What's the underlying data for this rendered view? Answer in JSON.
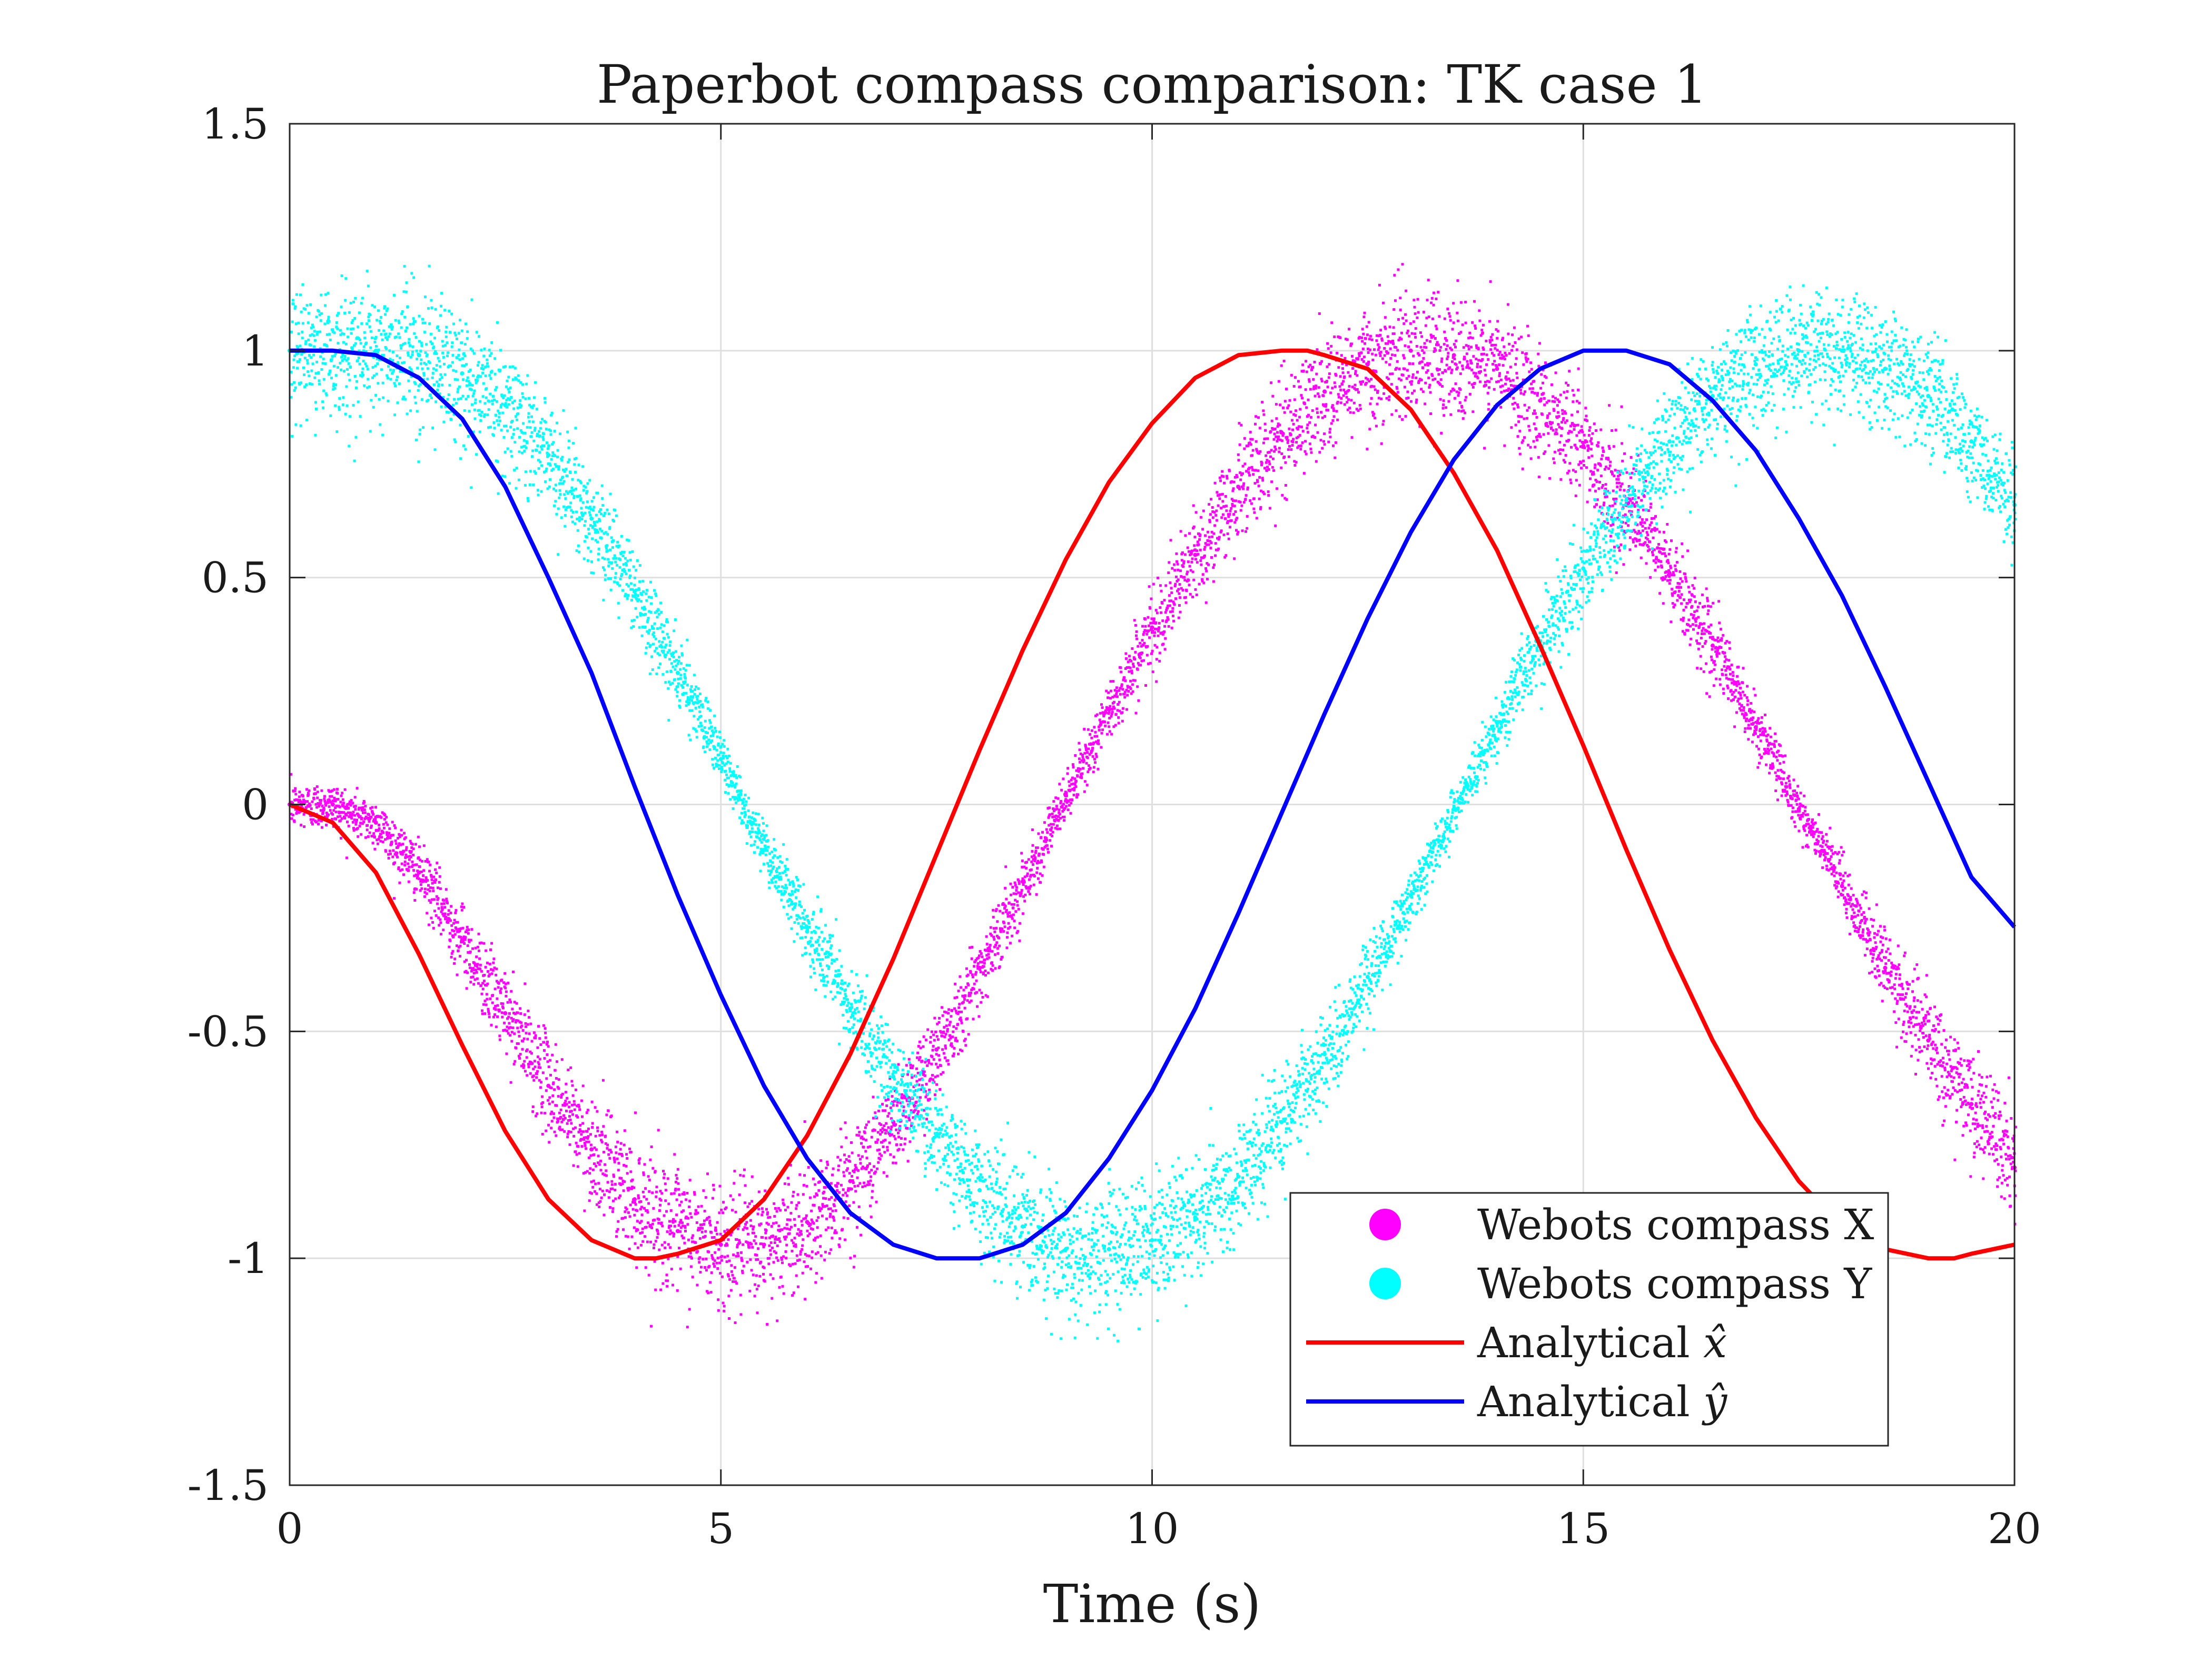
{
  "chart_data": {
    "type": "line",
    "title": "Paperbot compass comparison: TK case 1",
    "xlabel": "Time (s)",
    "ylabel": "",
    "xlim": [
      0,
      20
    ],
    "ylim": [
      -1.5,
      1.5
    ],
    "x_ticks": [
      0,
      5,
      10,
      15,
      20
    ],
    "y_ticks": [
      -1.5,
      -1,
      -0.5,
      0,
      0.5,
      1,
      1.5
    ],
    "x_tick_labels": [
      "0",
      "5",
      "10",
      "15",
      "20"
    ],
    "y_tick_labels": [
      "-1.5",
      "-1",
      "-0.5",
      "0",
      "0.5",
      "1",
      "1.5"
    ],
    "grid": true,
    "legend_position": "bottom-right",
    "legend": [
      {
        "label": "Webots compass X",
        "symbol": "dot",
        "color": "#ff00ff"
      },
      {
        "label": "Webots compass Y",
        "symbol": "dot",
        "color": "#00ffff"
      },
      {
        "label": "Analytical ",
        "hat_symbol": "x̂",
        "symbol": "line",
        "color": "#ff0000"
      },
      {
        "label": "Analytical ",
        "hat_symbol": "ŷ",
        "symbol": "line",
        "color": "#0000ff"
      }
    ],
    "series": [
      {
        "name": "Webots compass X",
        "kind": "scatter",
        "color": "#ff00ff",
        "x": [
          0,
          0.5,
          1,
          1.5,
          2,
          2.5,
          3,
          3.5,
          4,
          4.5,
          5,
          5.5,
          6,
          6.5,
          7,
          7.5,
          8,
          8.5,
          9,
          9.5,
          10,
          10.5,
          11,
          11.5,
          12,
          12.5,
          13,
          13.5,
          14,
          14.5,
          15,
          15.5,
          16,
          16.5,
          17,
          17.5,
          18,
          18.5,
          19,
          19.5,
          20
        ],
        "y": [
          0,
          0,
          -0.04,
          -0.15,
          -0.3,
          -0.46,
          -0.62,
          -0.76,
          -0.87,
          -0.94,
          -0.97,
          -0.97,
          -0.92,
          -0.83,
          -0.7,
          -0.54,
          -0.36,
          -0.17,
          0.02,
          0.21,
          0.39,
          0.55,
          0.7,
          0.82,
          0.91,
          0.97,
          1,
          0.99,
          0.96,
          0.89,
          0.79,
          0.66,
          0.51,
          0.35,
          0.17,
          -0.01,
          -0.18,
          -0.36,
          -0.52,
          -0.66,
          -0.8
        ]
      },
      {
        "name": "Webots compass Y",
        "kind": "scatter",
        "color": "#00ffff",
        "x": [
          0,
          0.5,
          1,
          1.5,
          2,
          2.5,
          3,
          3.5,
          4,
          4.5,
          5,
          5.5,
          6,
          6.5,
          7,
          7.5,
          8,
          8.5,
          9,
          9.5,
          10,
          10.5,
          11,
          11.5,
          12,
          12.5,
          13,
          13.5,
          14,
          14.5,
          15,
          15.5,
          16,
          16.5,
          17,
          17.5,
          18,
          18.5,
          19,
          19.5,
          20
        ],
        "y": [
          1,
          1,
          1,
          0.99,
          0.95,
          0.88,
          0.77,
          0.63,
          0.47,
          0.29,
          0.1,
          -0.1,
          -0.28,
          -0.45,
          -0.6,
          -0.73,
          -0.85,
          -0.93,
          -0.98,
          -0.98,
          -0.96,
          -0.91,
          -0.82,
          -0.7,
          -0.55,
          -0.38,
          -0.2,
          -0.01,
          0.18,
          0.36,
          0.52,
          0.67,
          0.8,
          0.9,
          0.97,
          1,
          1,
          0.96,
          0.9,
          0.8,
          0.66
        ]
      },
      {
        "name": "Analytical x̂",
        "kind": "line",
        "color": "#ff0000",
        "x": [
          0,
          0.5,
          1,
          1.5,
          2,
          2.5,
          3,
          3.5,
          4,
          4.25,
          4.5,
          5,
          5.5,
          6,
          6.5,
          7,
          7.5,
          8,
          8.5,
          9,
          9.5,
          10,
          10.5,
          11,
          11.5,
          11.8,
          12,
          12.5,
          13,
          13.5,
          14,
          14.5,
          15,
          15.5,
          16,
          16.5,
          17,
          17.5,
          18,
          18.5,
          19,
          19.3,
          19.5,
          20
        ],
        "y": [
          0,
          -0.04,
          -0.15,
          -0.33,
          -0.53,
          -0.72,
          -0.87,
          -0.96,
          -1,
          -1,
          -0.99,
          -0.96,
          -0.87,
          -0.73,
          -0.55,
          -0.34,
          -0.11,
          0.12,
          0.34,
          0.54,
          0.71,
          0.84,
          0.94,
          0.99,
          1,
          1,
          0.99,
          0.96,
          0.87,
          0.73,
          0.56,
          0.35,
          0.13,
          -0.1,
          -0.32,
          -0.52,
          -0.69,
          -0.83,
          -0.93,
          -0.98,
          -1,
          -1,
          -0.99,
          -0.97
        ]
      },
      {
        "name": "Analytical ŷ",
        "kind": "line",
        "color": "#0000ff",
        "x": [
          0,
          0.5,
          1,
          1.5,
          2,
          2.5,
          3,
          3.5,
          4,
          4.5,
          5,
          5.5,
          6,
          6.5,
          7,
          7.5,
          8,
          8.5,
          9,
          9.5,
          10,
          10.5,
          11,
          11.5,
          12,
          12.5,
          13,
          13.5,
          14,
          14.5,
          15,
          15.5,
          16,
          16.5,
          17,
          17.5,
          18,
          18.5,
          19,
          19.5,
          20
        ],
        "y": [
          1,
          1,
          0.99,
          0.94,
          0.85,
          0.7,
          0.5,
          0.29,
          0.04,
          -0.2,
          -0.42,
          -0.62,
          -0.78,
          -0.9,
          -0.97,
          -1,
          -1,
          -0.97,
          -0.9,
          -0.78,
          -0.63,
          -0.45,
          -0.24,
          -0.02,
          0.2,
          0.41,
          0.6,
          0.76,
          0.88,
          0.96,
          1,
          1,
          0.97,
          0.89,
          0.78,
          0.63,
          0.46,
          0.26,
          0.05,
          -0.16,
          -0.27
        ]
      }
    ]
  }
}
